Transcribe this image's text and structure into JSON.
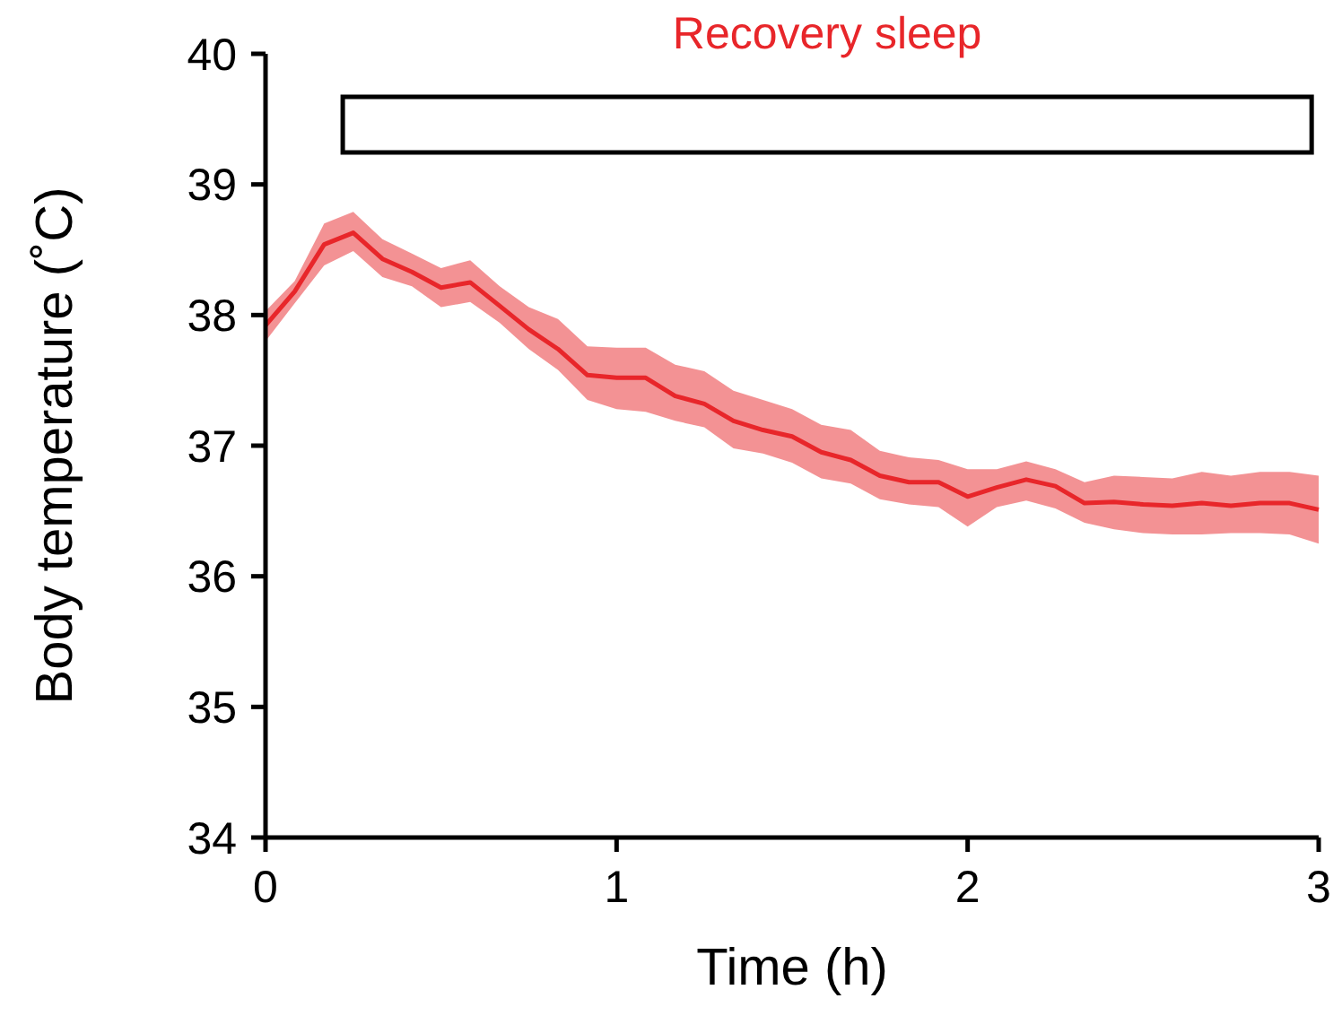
{
  "chart_data": {
    "type": "line",
    "xlabel": "Time (h)",
    "ylabel": "Body temperature (˚C)",
    "xlim": [
      0,
      3
    ],
    "xticks": [
      0,
      1,
      2,
      3
    ],
    "ylim": [
      34,
      40
    ],
    "yticks": [
      34,
      35,
      36,
      37,
      38,
      39,
      40
    ],
    "grid": false,
    "marker": "none",
    "line_style": "solid",
    "x": [
      0,
      0.083,
      0.167,
      0.25,
      0.333,
      0.417,
      0.5,
      0.583,
      0.667,
      0.75,
      0.833,
      0.917,
      1,
      1.083,
      1.167,
      1.25,
      1.333,
      1.417,
      1.5,
      1.583,
      1.667,
      1.75,
      1.833,
      1.917,
      2,
      2.083,
      2.167,
      2.25,
      2.333,
      2.417,
      2.5,
      2.583,
      2.667,
      2.75,
      2.833,
      2.917,
      3
    ],
    "series": [
      {
        "color": "#e8262a",
        "values": [
          37.92,
          38.18,
          38.54,
          38.63,
          38.43,
          38.33,
          38.21,
          38.25,
          38.07,
          37.89,
          37.74,
          37.54,
          37.52,
          37.52,
          37.38,
          37.32,
          37.19,
          37.12,
          37.07,
          36.95,
          36.89,
          36.77,
          36.72,
          36.72,
          36.61,
          36.68,
          36.74,
          36.69,
          36.56,
          36.57,
          36.55,
          36.54,
          36.56,
          36.54,
          36.56,
          36.56,
          36.51
        ],
        "lower": [
          37.8,
          38.09,
          38.38,
          38.49,
          38.29,
          38.22,
          38.06,
          38.1,
          37.94,
          37.74,
          37.58,
          37.35,
          37.28,
          37.26,
          37.19,
          37.14,
          36.98,
          36.94,
          36.87,
          36.75,
          36.71,
          36.59,
          36.55,
          36.53,
          36.38,
          36.53,
          36.58,
          36.52,
          36.41,
          36.36,
          36.33,
          36.32,
          36.32,
          36.33,
          36.33,
          36.32,
          36.25
        ],
        "upper": [
          38.03,
          38.26,
          38.7,
          38.79,
          38.58,
          38.47,
          38.36,
          38.42,
          38.22,
          38.06,
          37.97,
          37.76,
          37.75,
          37.75,
          37.62,
          37.57,
          37.42,
          37.35,
          37.28,
          37.16,
          37.12,
          36.96,
          36.91,
          36.89,
          36.82,
          36.82,
          36.88,
          36.82,
          36.72,
          36.77,
          36.76,
          36.75,
          36.8,
          36.77,
          36.8,
          36.8,
          36.77
        ]
      }
    ],
    "bands": [
      {
        "axis": "x",
        "from": 0.22,
        "to": 2.98,
        "label": "Recovery sleep",
        "color": "#ffffff"
      }
    ]
  }
}
